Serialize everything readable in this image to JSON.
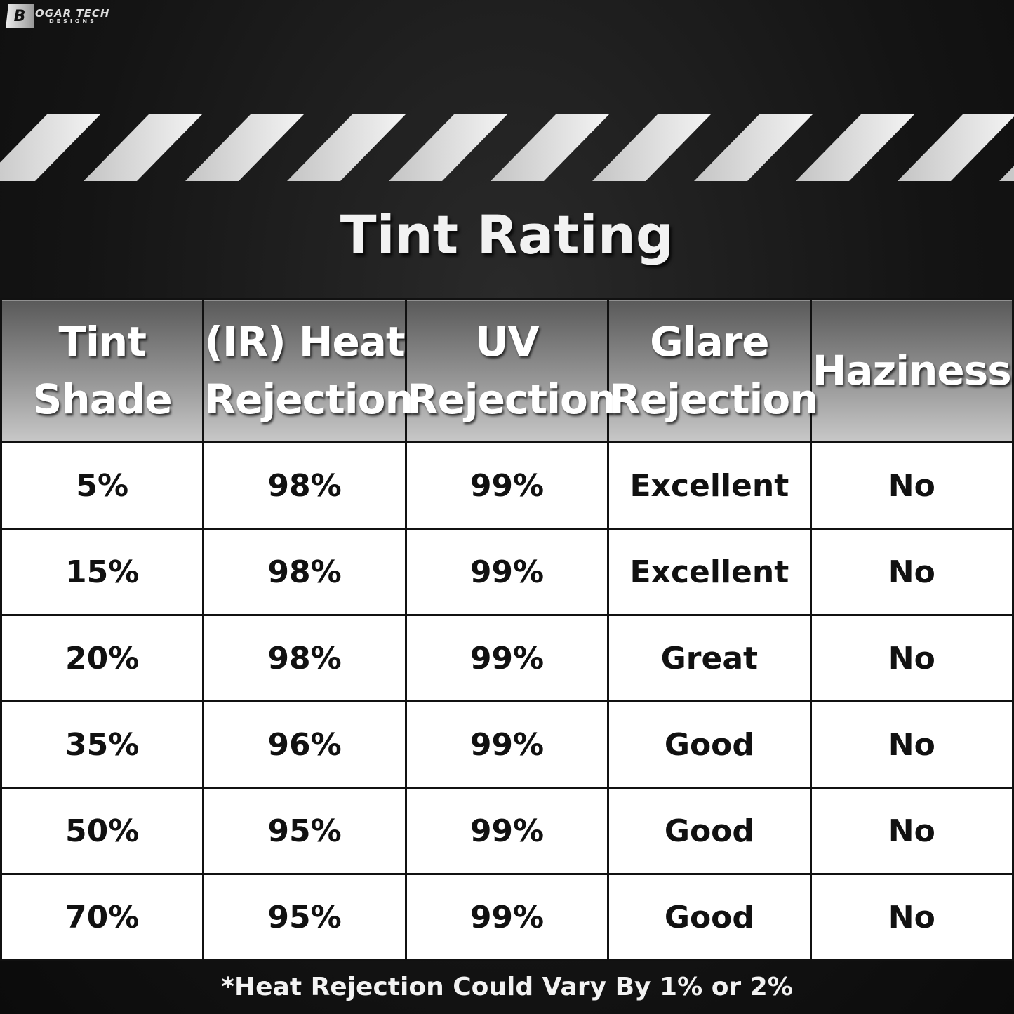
{
  "logo": {
    "text": "BOGAR TECH DESIGNS",
    "line1": "OGAR TECH",
    "line2": "DESIGNS",
    "mark": "B"
  },
  "title": "Tint Rating",
  "table": {
    "headers": [
      "Tint Shade",
      "(IR) Heat Rejection",
      "UV Rejection",
      "Glare Rejection",
      "Haziness"
    ],
    "rows": [
      [
        "5%",
        "98%",
        "99%",
        "Excellent",
        "No"
      ],
      [
        "15%",
        "98%",
        "99%",
        "Excellent",
        "No"
      ],
      [
        "20%",
        "98%",
        "99%",
        "Great",
        "No"
      ],
      [
        "35%",
        "96%",
        "99%",
        "Good",
        "No"
      ],
      [
        "50%",
        "95%",
        "99%",
        "Good",
        "No"
      ],
      [
        "70%",
        "95%",
        "99%",
        "Good",
        "No"
      ]
    ]
  },
  "footnote": "*Heat Rejection Could Vary By 1% or 2%",
  "colors": {
    "background": "#141414",
    "stripe": "#e0e0e0",
    "header_bg": "#9a9a9a",
    "cell_bg": "#ffffff"
  }
}
